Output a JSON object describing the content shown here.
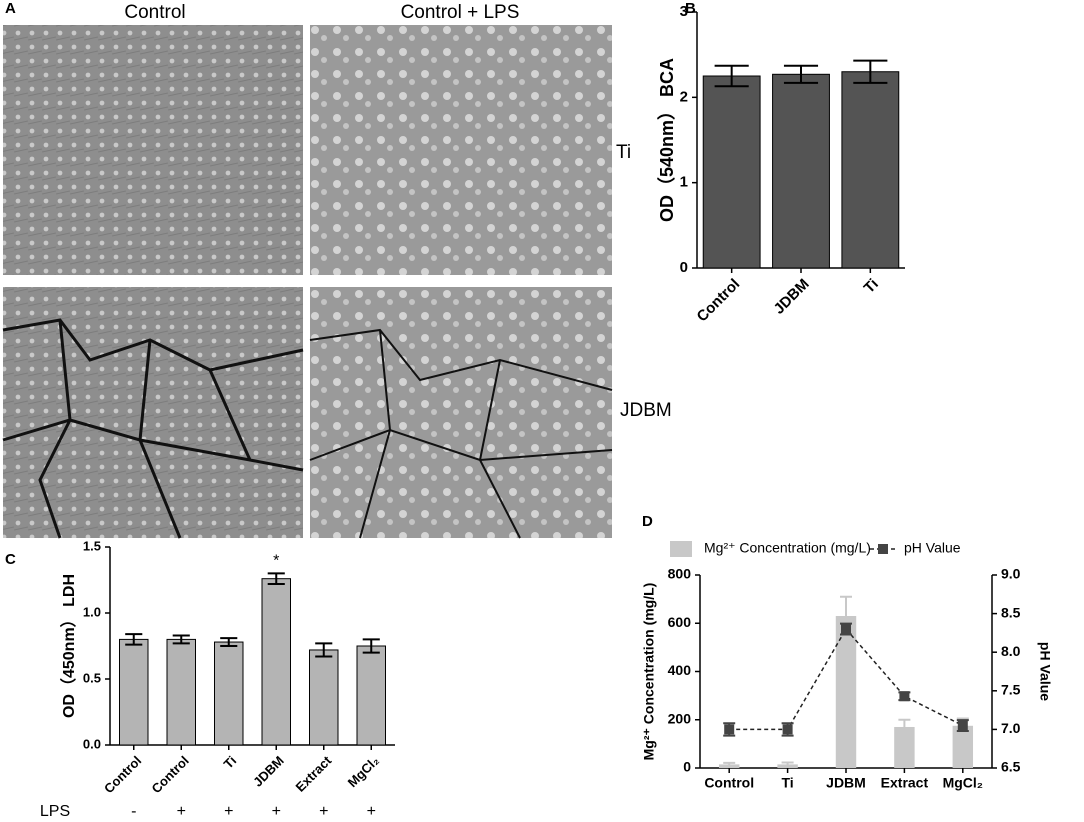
{
  "micrographs": {
    "panel": "A",
    "columns": [
      "Control",
      "Control + LPS"
    ],
    "rows": [
      "Ti",
      "JDBM"
    ]
  },
  "chart_data": [
    {
      "type": "bar",
      "panel": "B",
      "y_label": "OD（540nm） BCA",
      "categories": [
        "Control",
        "JDBM",
        "Ti"
      ],
      "values": [
        2.25,
        2.27,
        2.3
      ],
      "errors": [
        0.12,
        0.1,
        0.13
      ],
      "color": "#545454",
      "ylim": [
        0,
        3
      ],
      "yticks": [
        0,
        1,
        2,
        3
      ]
    },
    {
      "type": "bar",
      "panel": "C",
      "y_label": "OD（450nm） LDH",
      "categories": [
        "Control",
        "Control",
        "Ti",
        "JDBM",
        "Extract",
        "MgCl₂"
      ],
      "values": [
        0.8,
        0.8,
        0.78,
        1.26,
        0.72,
        0.75
      ],
      "errors": [
        0.04,
        0.03,
        0.03,
        0.04,
        0.05,
        0.05
      ],
      "color": "#b4b4b4",
      "ylim": [
        0,
        1.5
      ],
      "yticks": [
        {
          "value": 0,
          "label": "0.0"
        },
        0.5,
        {
          "value": 1,
          "label": "1.0"
        },
        1.5
      ],
      "annotations": [
        {
          "category": 3,
          "text": "*"
        }
      ],
      "row_label": "LPS",
      "row_values": [
        "-",
        "+",
        "+",
        "+",
        "+",
        "+"
      ]
    },
    {
      "type": "bar-line",
      "panel": "D",
      "y_label": "Mg²⁺ Concentration (mg/L)",
      "y2_label": "pH Value",
      "categories": [
        "Control",
        "Ti",
        "JDBM",
        "Extract",
        "MgCl₂"
      ],
      "series": [
        {
          "name": "Mg²⁺ Concentration (mg/L)",
          "color": "#c8c8c8",
          "values": [
            15,
            15,
            630,
            170,
            175
          ],
          "errors": [
            6,
            8,
            80,
            30,
            30
          ]
        },
        {
          "name": "pH Value",
          "color": "#444444",
          "axis": "y2",
          "values": [
            7.0,
            7.0,
            8.3,
            7.43,
            7.05
          ],
          "errors": [
            0.08,
            0.08,
            0.07,
            0.05,
            0.07
          ]
        }
      ],
      "ylim": [
        0,
        800
      ],
      "yticks": [
        0,
        200,
        400,
        600,
        800
      ],
      "y2lim": [
        6.5,
        9.0
      ],
      "y2ticks": [
        6.5,
        {
          "value": 7,
          "label": "7.0"
        },
        7.5,
        {
          "value": 8,
          "label": "8.0"
        },
        8.5,
        {
          "value": 9,
          "label": "9.0"
        }
      ]
    }
  ]
}
